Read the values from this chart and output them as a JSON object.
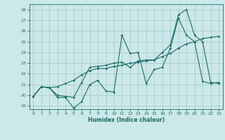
{
  "xlabel": "Humidex (Indice chaleur)",
  "bg_color": "#cce8e8",
  "grid_color": "#aacccc",
  "line_color": "#1a6b6b",
  "xlim": [
    -0.5,
    23.5
  ],
  "ylim": [
    18.7,
    28.5
  ],
  "yticks": [
    19,
    20,
    21,
    22,
    23,
    24,
    25,
    26,
    27,
    28
  ],
  "xticks": [
    0,
    1,
    2,
    3,
    4,
    5,
    6,
    7,
    8,
    9,
    10,
    11,
    12,
    13,
    14,
    15,
    16,
    17,
    18,
    19,
    20,
    21,
    22,
    23
  ],
  "line1_x": [
    0,
    1,
    2,
    3,
    4,
    5,
    6,
    7,
    8,
    9,
    10,
    11,
    12,
    13,
    14,
    15,
    16,
    17,
    18,
    19,
    20,
    21,
    22,
    23
  ],
  "line1_y": [
    19.9,
    20.8,
    20.7,
    19.8,
    19.8,
    18.8,
    19.4,
    21.0,
    21.4,
    20.4,
    20.3,
    25.6,
    23.9,
    24.0,
    21.1,
    22.4,
    22.6,
    24.4,
    27.2,
    25.6,
    25.0,
    21.3,
    21.1,
    21.2
  ],
  "line2_x": [
    0,
    1,
    2,
    3,
    4,
    5,
    6,
    7,
    8,
    9,
    10,
    11,
    12,
    13,
    14,
    15,
    16,
    17,
    18,
    19,
    20,
    21,
    22,
    23
  ],
  "line2_y": [
    19.9,
    20.8,
    20.7,
    20.8,
    21.1,
    21.4,
    21.9,
    22.3,
    22.5,
    22.5,
    22.7,
    22.8,
    23.0,
    23.1,
    23.2,
    23.3,
    23.6,
    23.9,
    24.4,
    24.8,
    25.0,
    25.3,
    25.4,
    25.5
  ],
  "line3_x": [
    0,
    1,
    2,
    3,
    4,
    5,
    6,
    7,
    8,
    9,
    10,
    11,
    12,
    13,
    14,
    15,
    16,
    17,
    18,
    19,
    20,
    21,
    22,
    23
  ],
  "line3_y": [
    19.9,
    20.8,
    20.7,
    20.0,
    19.9,
    19.8,
    21.2,
    22.6,
    22.7,
    22.8,
    23.0,
    23.1,
    22.6,
    23.2,
    23.3,
    23.3,
    24.0,
    24.7,
    27.5,
    28.0,
    25.6,
    25.0,
    21.2,
    21.1
  ]
}
